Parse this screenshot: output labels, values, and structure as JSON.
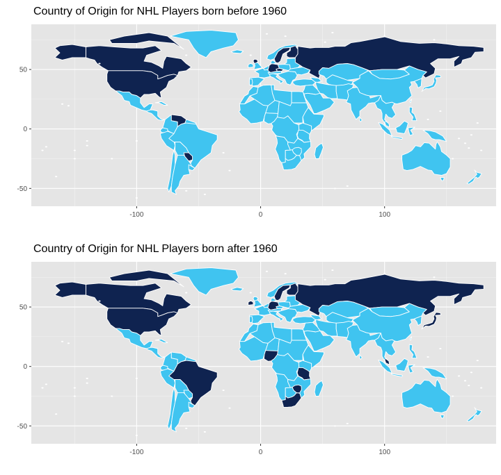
{
  "colors": {
    "panel_background": "#e5e5e5",
    "grid_line": "#ffffff",
    "country_border": "#ffffff",
    "players_present": "#0f2350",
    "players_absent": "#40c4f0",
    "background": "#ffffff"
  },
  "map_panels": [
    {
      "title": "Country of Origin for NHL Players born before 1960",
      "x_ticks": [
        "-100",
        "0",
        "100"
      ],
      "y_ticks": [
        "50",
        "0",
        "-50"
      ],
      "highlighted_countries": [
        "Canada",
        "United States",
        "Russia",
        "Sweden",
        "Finland",
        "Germany",
        "Czech Republic",
        "Venezuela",
        "Paraguay",
        "Scotland"
      ]
    },
    {
      "title": "Country of Origin for NHL Players born after 1960",
      "x_ticks": [
        "-100",
        "0",
        "100"
      ],
      "y_ticks": [
        "50",
        "0",
        "-50"
      ],
      "highlighted_countries": [
        "Canada",
        "United States",
        "Russia",
        "Sweden",
        "Finland",
        "Germany",
        "Brazil",
        "Nigeria",
        "Tanzania",
        "Zimbabwe",
        "South Africa",
        "Japan",
        "Malaysia",
        "Ireland"
      ]
    }
  ],
  "chart_data": [
    {
      "type": "map",
      "title": "Country of Origin for NHL Players born before 1960",
      "xlim": [
        -185,
        190
      ],
      "ylim": [
        -65,
        88
      ],
      "x_ticks": [
        -100,
        0,
        100
      ],
      "y_ticks": [
        50,
        0,
        -50
      ],
      "grid": true
    },
    {
      "type": "map",
      "title": "Country of Origin for NHL Players born after 1960",
      "xlim": [
        -185,
        190
      ],
      "ylim": [
        -65,
        88
      ],
      "x_ticks": [
        -100,
        0,
        100
      ],
      "y_ticks": [
        50,
        0,
        -50
      ],
      "grid": true
    }
  ]
}
